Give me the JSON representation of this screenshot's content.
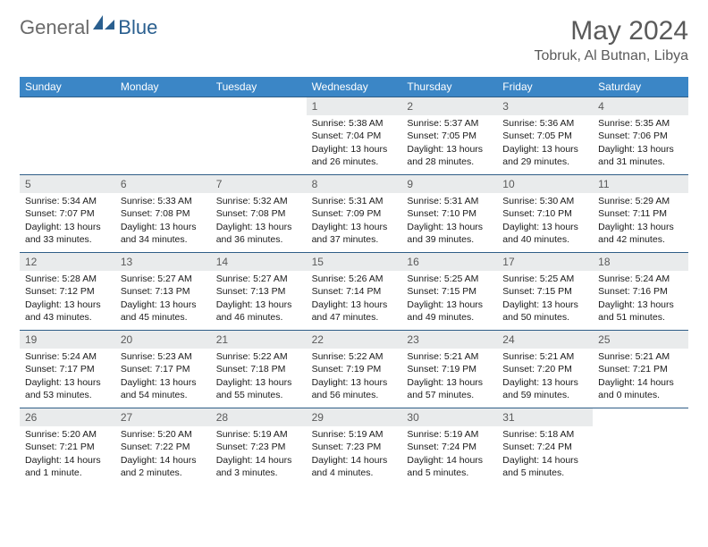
{
  "brand": {
    "general": "General",
    "blue": "Blue"
  },
  "header": {
    "month_title": "May 2024",
    "location": "Tobruk, Al Butnan, Libya"
  },
  "colors": {
    "dow_bg": "#3b86c6",
    "dow_text": "#ffffff",
    "week_border": "#2f5e87",
    "daynum_bg": "#e9ebec",
    "text_gray": "#5a5a5a",
    "logo_blue": "#2a5f8f"
  },
  "days_of_week": [
    "Sunday",
    "Monday",
    "Tuesday",
    "Wednesday",
    "Thursday",
    "Friday",
    "Saturday"
  ],
  "weeks": [
    [
      null,
      null,
      null,
      {
        "n": "1",
        "sunrise": "Sunrise: 5:38 AM",
        "sunset": "Sunset: 7:04 PM",
        "daylight": "Daylight: 13 hours and 26 minutes."
      },
      {
        "n": "2",
        "sunrise": "Sunrise: 5:37 AM",
        "sunset": "Sunset: 7:05 PM",
        "daylight": "Daylight: 13 hours and 28 minutes."
      },
      {
        "n": "3",
        "sunrise": "Sunrise: 5:36 AM",
        "sunset": "Sunset: 7:05 PM",
        "daylight": "Daylight: 13 hours and 29 minutes."
      },
      {
        "n": "4",
        "sunrise": "Sunrise: 5:35 AM",
        "sunset": "Sunset: 7:06 PM",
        "daylight": "Daylight: 13 hours and 31 minutes."
      }
    ],
    [
      {
        "n": "5",
        "sunrise": "Sunrise: 5:34 AM",
        "sunset": "Sunset: 7:07 PM",
        "daylight": "Daylight: 13 hours and 33 minutes."
      },
      {
        "n": "6",
        "sunrise": "Sunrise: 5:33 AM",
        "sunset": "Sunset: 7:08 PM",
        "daylight": "Daylight: 13 hours and 34 minutes."
      },
      {
        "n": "7",
        "sunrise": "Sunrise: 5:32 AM",
        "sunset": "Sunset: 7:08 PM",
        "daylight": "Daylight: 13 hours and 36 minutes."
      },
      {
        "n": "8",
        "sunrise": "Sunrise: 5:31 AM",
        "sunset": "Sunset: 7:09 PM",
        "daylight": "Daylight: 13 hours and 37 minutes."
      },
      {
        "n": "9",
        "sunrise": "Sunrise: 5:31 AM",
        "sunset": "Sunset: 7:10 PM",
        "daylight": "Daylight: 13 hours and 39 minutes."
      },
      {
        "n": "10",
        "sunrise": "Sunrise: 5:30 AM",
        "sunset": "Sunset: 7:10 PM",
        "daylight": "Daylight: 13 hours and 40 minutes."
      },
      {
        "n": "11",
        "sunrise": "Sunrise: 5:29 AM",
        "sunset": "Sunset: 7:11 PM",
        "daylight": "Daylight: 13 hours and 42 minutes."
      }
    ],
    [
      {
        "n": "12",
        "sunrise": "Sunrise: 5:28 AM",
        "sunset": "Sunset: 7:12 PM",
        "daylight": "Daylight: 13 hours and 43 minutes."
      },
      {
        "n": "13",
        "sunrise": "Sunrise: 5:27 AM",
        "sunset": "Sunset: 7:13 PM",
        "daylight": "Daylight: 13 hours and 45 minutes."
      },
      {
        "n": "14",
        "sunrise": "Sunrise: 5:27 AM",
        "sunset": "Sunset: 7:13 PM",
        "daylight": "Daylight: 13 hours and 46 minutes."
      },
      {
        "n": "15",
        "sunrise": "Sunrise: 5:26 AM",
        "sunset": "Sunset: 7:14 PM",
        "daylight": "Daylight: 13 hours and 47 minutes."
      },
      {
        "n": "16",
        "sunrise": "Sunrise: 5:25 AM",
        "sunset": "Sunset: 7:15 PM",
        "daylight": "Daylight: 13 hours and 49 minutes."
      },
      {
        "n": "17",
        "sunrise": "Sunrise: 5:25 AM",
        "sunset": "Sunset: 7:15 PM",
        "daylight": "Daylight: 13 hours and 50 minutes."
      },
      {
        "n": "18",
        "sunrise": "Sunrise: 5:24 AM",
        "sunset": "Sunset: 7:16 PM",
        "daylight": "Daylight: 13 hours and 51 minutes."
      }
    ],
    [
      {
        "n": "19",
        "sunrise": "Sunrise: 5:24 AM",
        "sunset": "Sunset: 7:17 PM",
        "daylight": "Daylight: 13 hours and 53 minutes."
      },
      {
        "n": "20",
        "sunrise": "Sunrise: 5:23 AM",
        "sunset": "Sunset: 7:17 PM",
        "daylight": "Daylight: 13 hours and 54 minutes."
      },
      {
        "n": "21",
        "sunrise": "Sunrise: 5:22 AM",
        "sunset": "Sunset: 7:18 PM",
        "daylight": "Daylight: 13 hours and 55 minutes."
      },
      {
        "n": "22",
        "sunrise": "Sunrise: 5:22 AM",
        "sunset": "Sunset: 7:19 PM",
        "daylight": "Daylight: 13 hours and 56 minutes."
      },
      {
        "n": "23",
        "sunrise": "Sunrise: 5:21 AM",
        "sunset": "Sunset: 7:19 PM",
        "daylight": "Daylight: 13 hours and 57 minutes."
      },
      {
        "n": "24",
        "sunrise": "Sunrise: 5:21 AM",
        "sunset": "Sunset: 7:20 PM",
        "daylight": "Daylight: 13 hours and 59 minutes."
      },
      {
        "n": "25",
        "sunrise": "Sunrise: 5:21 AM",
        "sunset": "Sunset: 7:21 PM",
        "daylight": "Daylight: 14 hours and 0 minutes."
      }
    ],
    [
      {
        "n": "26",
        "sunrise": "Sunrise: 5:20 AM",
        "sunset": "Sunset: 7:21 PM",
        "daylight": "Daylight: 14 hours and 1 minute."
      },
      {
        "n": "27",
        "sunrise": "Sunrise: 5:20 AM",
        "sunset": "Sunset: 7:22 PM",
        "daylight": "Daylight: 14 hours and 2 minutes."
      },
      {
        "n": "28",
        "sunrise": "Sunrise: 5:19 AM",
        "sunset": "Sunset: 7:23 PM",
        "daylight": "Daylight: 14 hours and 3 minutes."
      },
      {
        "n": "29",
        "sunrise": "Sunrise: 5:19 AM",
        "sunset": "Sunset: 7:23 PM",
        "daylight": "Daylight: 14 hours and 4 minutes."
      },
      {
        "n": "30",
        "sunrise": "Sunrise: 5:19 AM",
        "sunset": "Sunset: 7:24 PM",
        "daylight": "Daylight: 14 hours and 5 minutes."
      },
      {
        "n": "31",
        "sunrise": "Sunrise: 5:18 AM",
        "sunset": "Sunset: 7:24 PM",
        "daylight": "Daylight: 14 hours and 5 minutes."
      },
      null
    ]
  ]
}
